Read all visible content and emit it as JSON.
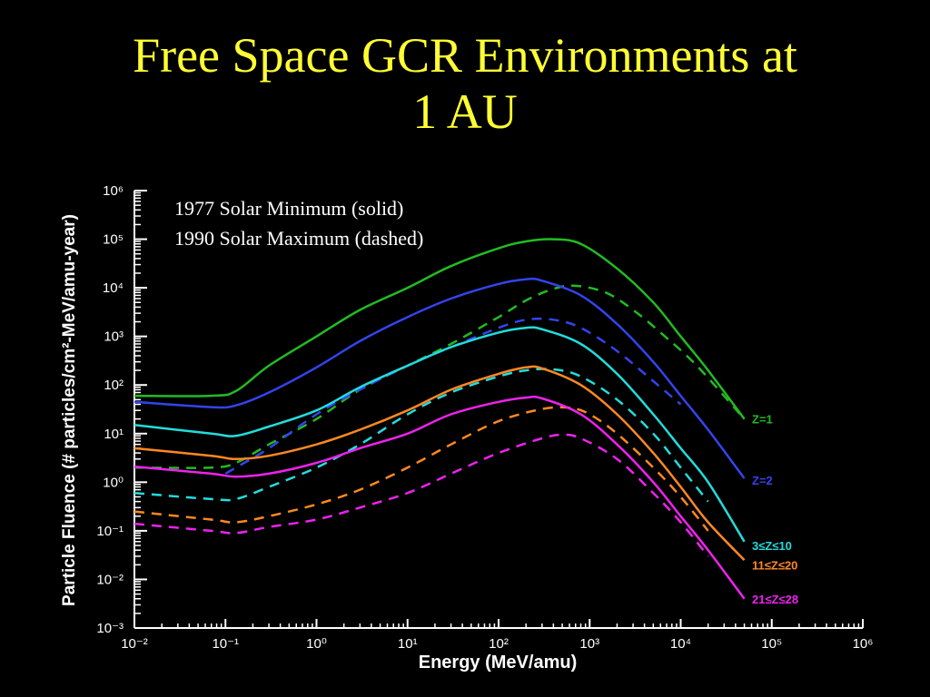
{
  "slide": {
    "title_line1": "Free Space GCR Environments at",
    "title_line2": "1 AU"
  },
  "colors": {
    "background": "#000000",
    "title": "#ffff33",
    "z1": "#22bb22",
    "z2": "#3344ee",
    "z3_10": "#22dddd",
    "z11_20": "#ff8822",
    "z21_28": "#ee22ee"
  },
  "chart_data": {
    "type": "line",
    "xlabel": "Energy (MeV/amu)",
    "ylabel": "Particle Fluence (# particles/cm²-MeV/amu-year)",
    "xscale": "log",
    "yscale": "log",
    "xlim": [
      0.01,
      1000000
    ],
    "ylim": [
      0.001,
      1000000
    ],
    "x_tick_labels": [
      "10⁻²",
      "10⁻¹",
      "10⁰",
      "10¹",
      "10²",
      "10³",
      "10⁴",
      "10⁵",
      "10⁶"
    ],
    "y_tick_labels": [
      "10⁻³",
      "10⁻²",
      "10⁻¹",
      "10⁰",
      "10¹",
      "10²",
      "10³",
      "10⁴",
      "10⁵",
      "10⁶"
    ],
    "annotations": [
      "1977 Solar Minimum (solid)",
      "1990 Solar Maximum (dashed)"
    ],
    "series": [
      {
        "name": "Z=1",
        "color": "#22bb22",
        "style": "solid",
        "x": [
          0.01,
          0.07,
          0.13,
          0.3,
          1,
          3,
          10,
          30,
          100,
          200,
          400,
          800,
          2000,
          5000,
          10000,
          20000,
          50000
        ],
        "y": [
          60,
          60,
          75,
          250,
          1000,
          3500,
          10000,
          28000,
          65000,
          90000,
          100000,
          80000,
          25000,
          5000,
          1000,
          200,
          20
        ]
      },
      {
        "name": "Z=1",
        "color": "#22bb22",
        "style": "dashed",
        "x": [
          0.01,
          0.07,
          0.13,
          0.3,
          1,
          3,
          10,
          30,
          100,
          200,
          400,
          700,
          1500,
          3000,
          6000,
          15000,
          50000
        ],
        "y": [
          2,
          2,
          2.5,
          6,
          20,
          80,
          250,
          700,
          2500,
          5500,
          9500,
          11000,
          8000,
          3500,
          1200,
          250,
          20
        ]
      },
      {
        "name": "Z=2",
        "color": "#3344ee",
        "style": "solid",
        "x": [
          0.01,
          0.07,
          0.13,
          0.3,
          1,
          3,
          10,
          30,
          100,
          200,
          300,
          800,
          2000,
          5000,
          10000,
          20000,
          50000
        ],
        "y": [
          45,
          35,
          38,
          70,
          230,
          800,
          2500,
          6000,
          12000,
          15000,
          14000,
          7000,
          1800,
          300,
          60,
          12,
          1.2
        ]
      },
      {
        "name": "Z=2",
        "color": "#3344ee",
        "style": "dashed",
        "x": [
          0.1,
          0.13,
          0.3,
          1,
          3,
          10,
          30,
          100,
          200,
          400,
          800,
          2000,
          5000,
          10000
        ],
        "y": [
          1.5,
          2,
          5,
          25,
          80,
          250,
          600,
          1500,
          2200,
          2200,
          1500,
          500,
          120,
          40
        ]
      },
      {
        "name": "3≤Z≤10",
        "color": "#22dddd",
        "style": "solid",
        "x": [
          0.01,
          0.07,
          0.13,
          0.3,
          1,
          3,
          10,
          30,
          100,
          200,
          300,
          800,
          2000,
          5000,
          10000,
          20000,
          50000
        ],
        "y": [
          15,
          10,
          9,
          14,
          30,
          90,
          250,
          600,
          1200,
          1500,
          1400,
          700,
          170,
          25,
          5,
          1,
          0.06
        ]
      },
      {
        "name": "3≤Z≤10",
        "color": "#22dddd",
        "style": "dashed",
        "x": [
          0.01,
          0.07,
          0.13,
          0.3,
          1,
          3,
          10,
          30,
          100,
          200,
          400,
          800,
          2000,
          5000,
          10000,
          20000
        ],
        "y": [
          0.6,
          0.45,
          0.45,
          0.8,
          2,
          6,
          25,
          70,
          150,
          200,
          210,
          150,
          50,
          10,
          2,
          0.4
        ]
      },
      {
        "name": "11≤Z≤20",
        "color": "#ff8822",
        "style": "solid",
        "x": [
          0.01,
          0.07,
          0.13,
          0.3,
          1,
          3,
          10,
          30,
          100,
          200,
          300,
          800,
          2000,
          5000,
          10000,
          20000,
          50000
        ],
        "y": [
          5,
          3.5,
          3,
          3.5,
          6,
          12,
          30,
          80,
          170,
          230,
          220,
          100,
          25,
          4,
          0.8,
          0.15,
          0.025
        ]
      },
      {
        "name": "11≤Z≤20",
        "color": "#ff8822",
        "style": "dashed",
        "x": [
          0.01,
          0.07,
          0.13,
          0.3,
          1,
          3,
          10,
          30,
          100,
          300,
          600,
          1000,
          2000,
          5000,
          10000,
          20000
        ],
        "y": [
          0.25,
          0.17,
          0.15,
          0.2,
          0.35,
          0.7,
          2,
          6,
          18,
          32,
          34,
          25,
          10,
          2,
          0.5,
          0.1
        ]
      },
      {
        "name": "21≤Z≤28",
        "color": "#ee22ee",
        "style": "solid",
        "x": [
          0.01,
          0.07,
          0.13,
          0.3,
          1,
          3,
          10,
          30,
          100,
          200,
          300,
          800,
          2000,
          5000,
          10000,
          20000,
          50000
        ],
        "y": [
          2.1,
          1.5,
          1.3,
          1.5,
          2.5,
          5,
          10,
          25,
          45,
          55,
          53,
          25,
          6,
          1,
          0.2,
          0.04,
          0.004
        ]
      },
      {
        "name": "21≤Z≤28",
        "color": "#ee22ee",
        "style": "dashed",
        "x": [
          0.01,
          0.07,
          0.13,
          0.3,
          1,
          3,
          10,
          30,
          100,
          300,
          500,
          800,
          2000,
          5000,
          10000,
          20000
        ],
        "y": [
          0.14,
          0.1,
          0.09,
          0.12,
          0.17,
          0.3,
          0.6,
          1.5,
          4,
          8,
          9.5,
          8,
          3,
          0.6,
          0.15,
          0.03
        ]
      }
    ],
    "series_labels": [
      {
        "text": "Z=1",
        "color": "#22bb22",
        "y": 20
      },
      {
        "text": "Z=2",
        "color": "#3344ee",
        "y": 1.1
      },
      {
        "text": "3≤Z≤10",
        "color": "#22dddd",
        "y": 0.05
      },
      {
        "text": "11≤Z≤20",
        "color": "#ff8822",
        "y": 0.02
      },
      {
        "text": "21≤Z≤28",
        "color": "#ee22ee",
        "y": 0.004
      }
    ]
  }
}
